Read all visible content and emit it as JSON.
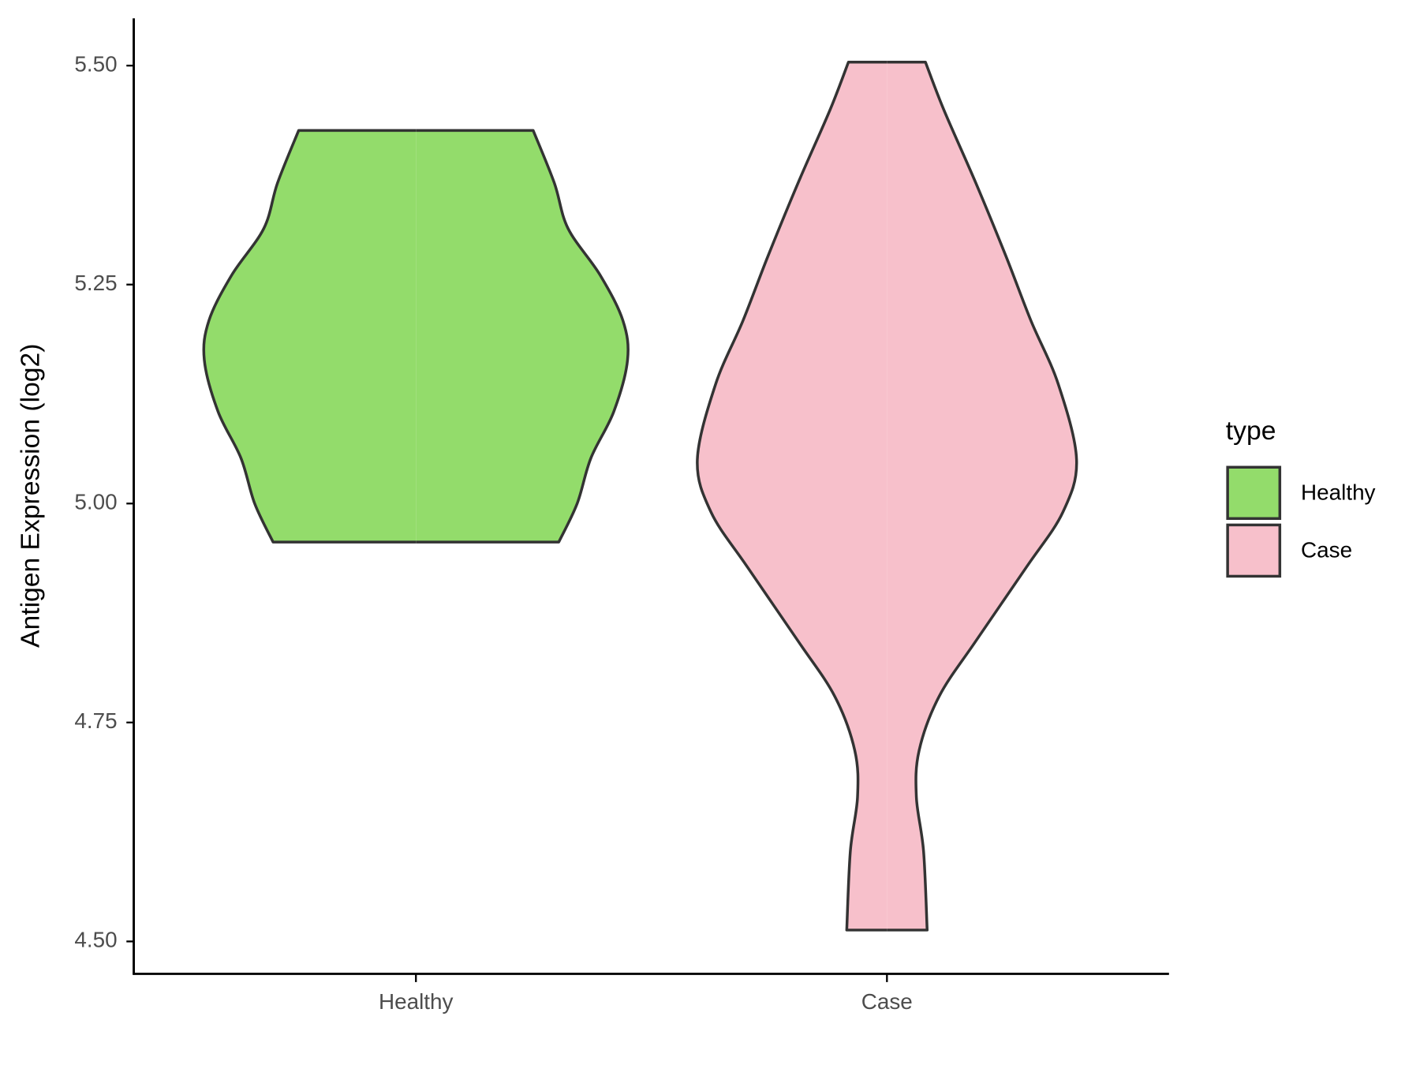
{
  "chart_data": {
    "type": "violin",
    "y_label": "Antigen Expression (log2)",
    "legend_title": "type",
    "legend": "right",
    "categories": [
      "Healthy",
      "Case"
    ],
    "ylim": [
      4.463,
      5.554
    ],
    "yticks": [
      {
        "value": 4.5,
        "label": "4.50"
      },
      {
        "value": 4.75,
        "label": "4.75"
      },
      {
        "value": 5.0,
        "label": "5.00"
      },
      {
        "value": 5.25,
        "label": "5.25"
      },
      {
        "value": 5.5,
        "label": "5.50"
      }
    ],
    "series": [
      {
        "name": "Healthy",
        "color": "#93dc6b",
        "y": [
          5.426,
          5.366,
          5.314,
          5.261,
          5.209,
          5.164,
          5.105,
          5.052,
          5.0,
          4.956
        ],
        "width": [
          0.554,
          0.654,
          0.719,
          0.87,
          0.978,
          1.0,
          0.935,
          0.827,
          0.762,
          0.675
        ]
      },
      {
        "name": "Case",
        "color": "#f7c0cb",
        "y": [
          5.504,
          5.45,
          5.366,
          5.282,
          5.209,
          5.136,
          5.05,
          4.99,
          4.927,
          4.843,
          4.78,
          4.718,
          4.665,
          4.603,
          4.513
        ],
        "width": [
          0.182,
          0.268,
          0.42,
          0.563,
          0.68,
          0.81,
          0.896,
          0.831,
          0.658,
          0.42,
          0.247,
          0.152,
          0.139,
          0.173,
          0.19
        ]
      }
    ]
  }
}
